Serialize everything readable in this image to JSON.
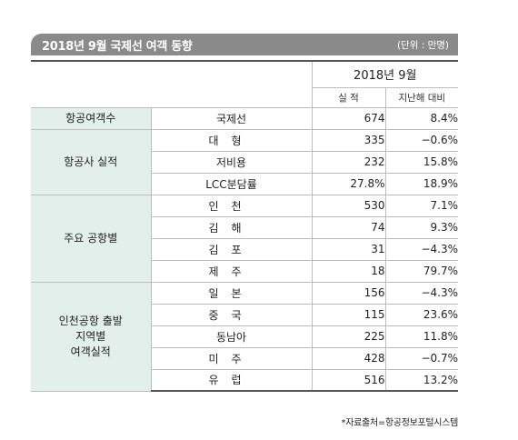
{
  "header": {
    "title": "2018년 9월 국제선 여객 동향",
    "unit": "(단위 : 만명)"
  },
  "columns": {
    "period": "2018년 9월",
    "actual": "실 적",
    "yoy": "지난해 대비"
  },
  "groups": [
    {
      "label_lines": [
        "항공여객수"
      ],
      "rows": [
        {
          "label": "국제선",
          "value": "674",
          "change": "8.4%"
        }
      ]
    },
    {
      "label_lines": [
        "항공사 실적"
      ],
      "rows": [
        {
          "label": "대형",
          "value": "335",
          "change": "−0.6%"
        },
        {
          "label": "저비용",
          "value": "232",
          "change": "15.8%"
        },
        {
          "label": "LCC분담률",
          "value": "27.8%",
          "change": "18.9%"
        }
      ]
    },
    {
      "label_lines": [
        "주요 공항별"
      ],
      "rows": [
        {
          "label": "인천",
          "value": "530",
          "change": "7.1%"
        },
        {
          "label": "김해",
          "value": "74",
          "change": "9.3%"
        },
        {
          "label": "김포",
          "value": "31",
          "change": "−4.3%"
        },
        {
          "label": "제주",
          "value": "18",
          "change": "79.7%"
        }
      ]
    },
    {
      "label_lines": [
        "인천공항 출발",
        "지역별",
        "여객실적"
      ],
      "rows": [
        {
          "label": "일본",
          "value": "156",
          "change": "−4.3%"
        },
        {
          "label": "중국",
          "value": "115",
          "change": "23.6%"
        },
        {
          "label": "동남아",
          "value": "225",
          "change": "11.8%"
        },
        {
          "label": "미주",
          "value": "428",
          "change": "−0.7%"
        },
        {
          "label": "유럽",
          "value": "516",
          "change": "13.2%"
        }
      ]
    }
  ],
  "footnote": "*자료출처=항공정보포털시스템"
}
